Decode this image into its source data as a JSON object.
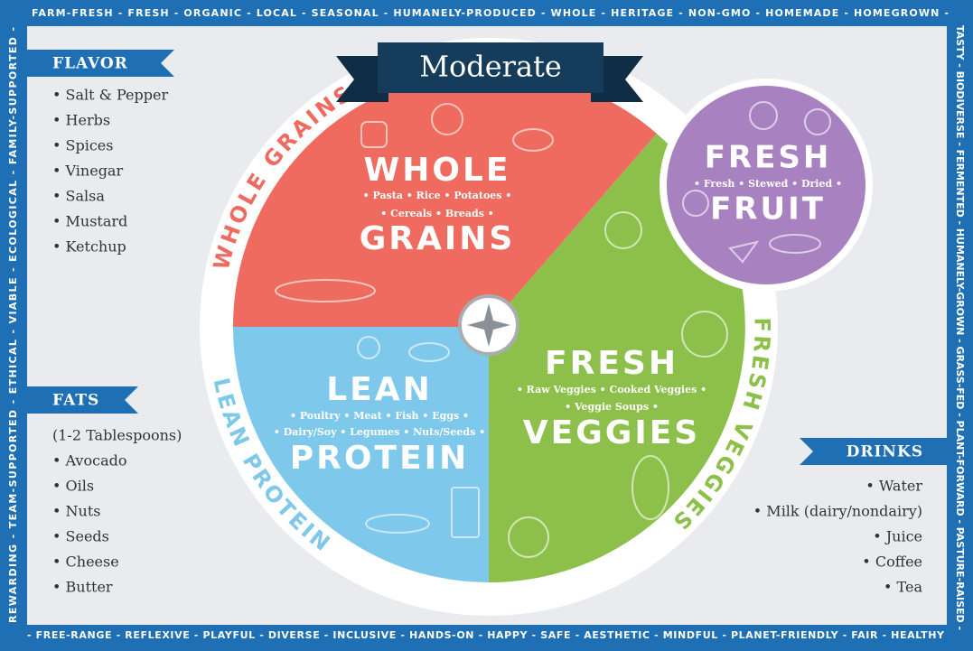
{
  "border": {
    "top": "FARM-FRESH - FRESH - ORGANIC - LOCAL - SEASONAL - HUMANELY-PRODUCED - WHOLE - HERITAGE - NON-GMO - HOMEMADE - HOMEGROWN -",
    "right": "TASTY - BIODIVERSE - FERMENTED - HUMANELY-GROWN - GRASS-FED - PLANT-FORWARD - PASTURE-RAISED -",
    "bottom": "- FREE-RANGE - REFLEXIVE - PLAYFUL - DIVERSE - INCLUSIVE - HANDS-ON - HAPPY - SAFE - AESTHETIC - MINDFUL - PLANET-FRIENDLY - FAIR - HEALTHY",
    "left": "REWARDING - TEAM-SUPPORTED - ETHICAL - VIABLE - ECOLOGICAL - FAMILY-SUPPORTED -"
  },
  "title": "Moderate",
  "plate": {
    "grains": {
      "ring_label": "WHOLE GRAINS",
      "title_top": "WHOLE",
      "items": [
        "• Pasta • Rice • Potatoes •",
        "• Cereals • Breads •"
      ],
      "title_bottom": "GRAINS"
    },
    "protein": {
      "ring_label": "LEAN PROTEIN",
      "title_top": "LEAN",
      "items": [
        "• Poultry • Meat • Fish • Eggs •",
        "• Dairy/Soy • Legumes • Nuts/Seeds •"
      ],
      "title_bottom": "PROTEIN"
    },
    "veggies": {
      "ring_label": "FRESH VEGGIES",
      "title_top": "FRESH",
      "items": [
        "• Raw Veggies • Cooked Veggies •",
        "• Veggie Soups •"
      ],
      "title_bottom": "VEGGIES"
    },
    "fruit": {
      "title_top": "FRESH",
      "items": [
        "• Fresh • Stewed • Dried •"
      ],
      "title_bottom": "FRUIT"
    }
  },
  "flavor": {
    "title": "FLAVOR",
    "items": [
      "• Salt & Pepper",
      "• Herbs",
      "• Spices",
      "• Vinegar",
      "• Salsa",
      "• Mustard",
      "• Ketchup"
    ]
  },
  "fats": {
    "title": "FATS",
    "items": [
      "(1-2 Tablespoons)",
      "• Avocado",
      "• Oils",
      "• Nuts",
      "• Seeds",
      "• Cheese",
      "• Butter"
    ]
  },
  "drinks": {
    "title": "DRINKS",
    "items": [
      "• Water",
      "• Milk (dairy/nondairy)",
      "• Juice",
      "• Coffee",
      "• Tea"
    ]
  }
}
